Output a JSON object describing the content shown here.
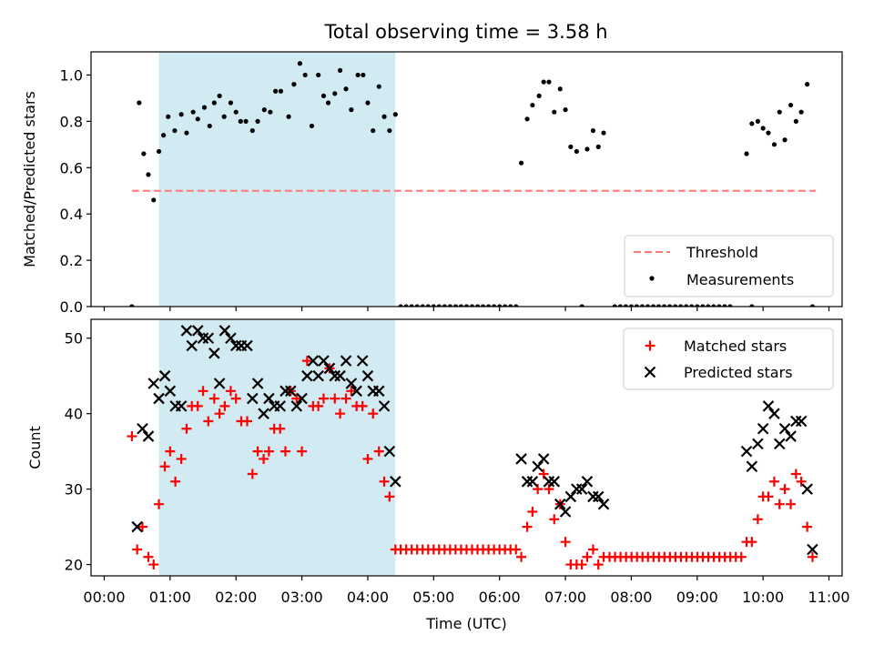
{
  "title": "Total observing time = 3.58 h",
  "colors": {
    "threshold": "#ff7777",
    "highlight": "#add8e6",
    "matched": "#ff0000",
    "predicted": "#000000",
    "measure": "#000000"
  },
  "chart_data": [
    {
      "type": "scatter",
      "ylabel": "Matched/Predicted stars",
      "xlim": [
        -0.2,
        11.2
      ],
      "ylim": [
        0,
        1.1
      ],
      "yticks": [
        0.0,
        0.2,
        0.4,
        0.6,
        0.8,
        1.0
      ],
      "ytick_labels": [
        "0.0",
        "0.2",
        "0.4",
        "0.6",
        "0.8",
        "1.0"
      ],
      "highlight_span_hours": [
        0.83,
        4.42
      ],
      "threshold": {
        "name": "Threshold",
        "value": 0.5,
        "x_range_hours": [
          0.42,
          10.8
        ]
      },
      "legend": {
        "loc": "lower right",
        "entries": [
          "Threshold",
          "Measurements"
        ]
      },
      "series": [
        {
          "name": "Measurements",
          "marker": "dot",
          "x": [
            0.42,
            0.53,
            0.6,
            0.67,
            0.75,
            0.83,
            0.9,
            0.97,
            1.07,
            1.17,
            1.25,
            1.35,
            1.42,
            1.52,
            1.6,
            1.67,
            1.75,
            1.82,
            1.92,
            2.0,
            2.07,
            2.15,
            2.25,
            2.33,
            2.43,
            2.52,
            2.6,
            2.68,
            2.8,
            2.88,
            2.97,
            3.05,
            3.15,
            3.25,
            3.33,
            3.4,
            3.5,
            3.58,
            3.67,
            3.75,
            3.85,
            3.93,
            4.0,
            4.08,
            4.17,
            4.25,
            4.33,
            4.42,
            6.33,
            6.42,
            6.5,
            6.6,
            6.67,
            6.75,
            6.83,
            6.92,
            7.0,
            7.08,
            7.17,
            7.25,
            7.33,
            7.42,
            7.5,
            7.58,
            9.75,
            9.83,
            9.92,
            10.0,
            10.08,
            10.17,
            10.25,
            10.33,
            10.42,
            10.5,
            10.58,
            10.67,
            10.75
          ],
          "y": [
            0.0,
            0.88,
            0.66,
            0.57,
            0.46,
            0.67,
            0.74,
            0.82,
            0.76,
            0.83,
            0.75,
            0.84,
            0.81,
            0.86,
            0.78,
            0.88,
            0.91,
            0.82,
            0.88,
            0.84,
            0.8,
            0.8,
            0.76,
            0.8,
            0.85,
            0.84,
            0.93,
            0.93,
            0.82,
            0.96,
            1.05,
            1.0,
            0.78,
            1.0,
            0.91,
            0.88,
            0.92,
            1.02,
            0.94,
            0.85,
            1.0,
            1.0,
            0.88,
            0.76,
            0.95,
            0.82,
            0.76,
            0.83,
            0.62,
            0.81,
            0.87,
            0.91,
            0.97,
            0.97,
            0.84,
            0.94,
            0.85,
            0.69,
            0.67,
            0.0,
            0.68,
            0.76,
            0.69,
            0.75,
            0.66,
            0.79,
            0.8,
            0.77,
            0.75,
            0.7,
            0.84,
            0.72,
            0.87,
            0.8,
            0.84,
            0.96,
            0.0
          ]
        },
        {
          "name": "",
          "marker": "dot",
          "x_start": 4.5,
          "x_end": 6.25,
          "x_step": 0.0833,
          "x_extra": [
            9.83
          ],
          "y": 0.0,
          "x_range_note": "zeros",
          "x2_start": 7.75,
          "x2_end": 9.58
        }
      ]
    },
    {
      "type": "scatter",
      "ylabel": "Count",
      "xlabel": "Time (UTC)",
      "xlim": [
        -0.2,
        11.2
      ],
      "ylim": [
        18.5,
        52.5
      ],
      "yticks": [
        20,
        30,
        40,
        50
      ],
      "ytick_labels": [
        "20",
        "30",
        "40",
        "50"
      ],
      "xticks": [
        0,
        1,
        2,
        3,
        4,
        5,
        6,
        7,
        8,
        9,
        10,
        11
      ],
      "xtick_labels": [
        "00:00",
        "01:00",
        "02:00",
        "03:00",
        "04:00",
        "05:00",
        "06:00",
        "07:00",
        "08:00",
        "09:00",
        "10:00",
        "11:00"
      ],
      "highlight_span_hours": [
        0.83,
        4.42
      ],
      "legend": {
        "loc": "upper right",
        "entries": [
          "Matched stars",
          "Predicted stars"
        ]
      },
      "series": [
        {
          "name": "Matched stars",
          "marker": "plus",
          "x": [
            0.42,
            0.5,
            0.58,
            0.67,
            0.75,
            0.83,
            0.92,
            1.0,
            1.08,
            1.17,
            1.25,
            1.33,
            1.42,
            1.5,
            1.58,
            1.67,
            1.75,
            1.83,
            1.92,
            2.0,
            2.08,
            2.17,
            2.25,
            2.33,
            2.42,
            2.5,
            2.58,
            2.67,
            2.75,
            2.83,
            2.92,
            3.0,
            3.08,
            3.17,
            3.25,
            3.33,
            3.42,
            3.5,
            3.58,
            3.67,
            3.75,
            3.83,
            3.92,
            4.0,
            4.08,
            4.17,
            4.25,
            4.33,
            4.42,
            6.33,
            6.42,
            6.5,
            6.58,
            6.67,
            6.75,
            6.83,
            6.92,
            7.0,
            7.08,
            7.17,
            7.25,
            7.33,
            7.42,
            7.5,
            7.58,
            9.75,
            9.83,
            9.92,
            10.0,
            10.08,
            10.17,
            10.25,
            10.33,
            10.42,
            10.5,
            10.58,
            10.67,
            10.75
          ],
          "y": [
            37,
            22,
            25,
            21,
            20,
            28,
            33,
            35,
            31,
            34,
            38,
            41,
            41,
            43,
            39,
            42,
            40,
            41,
            43,
            42,
            39,
            39,
            32,
            35,
            34,
            35,
            38,
            38,
            35,
            43,
            42,
            35,
            47,
            41,
            41,
            42,
            46,
            42,
            40,
            42,
            43,
            41,
            41,
            34,
            40,
            35,
            31,
            29,
            22,
            21,
            25,
            27,
            30,
            32,
            30,
            26,
            28,
            23,
            20,
            20,
            20,
            21,
            22,
            20,
            21,
            23,
            23,
            26,
            29,
            29,
            31,
            28,
            30,
            28,
            32,
            31,
            25,
            21
          ],
          "fill_x_start": 4.5,
          "fill_x_end": 6.25,
          "fill_y": 22,
          "fill2_x_start": 7.67,
          "fill2_x_end": 9.67,
          "fill2_y": 21
        },
        {
          "name": "Predicted stars",
          "marker": "x",
          "x": [
            0.5,
            0.58,
            0.67,
            0.75,
            0.83,
            0.92,
            1.0,
            1.08,
            1.17,
            1.25,
            1.33,
            1.42,
            1.5,
            1.58,
            1.67,
            1.75,
            1.83,
            1.92,
            2.0,
            2.08,
            2.17,
            2.25,
            2.33,
            2.42,
            2.5,
            2.58,
            2.67,
            2.75,
            2.83,
            2.92,
            3.0,
            3.08,
            3.17,
            3.25,
            3.33,
            3.42,
            3.5,
            3.58,
            3.67,
            3.75,
            3.83,
            3.92,
            4.0,
            4.08,
            4.17,
            4.25,
            4.33,
            4.42,
            6.33,
            6.42,
            6.5,
            6.58,
            6.67,
            6.75,
            6.83,
            6.92,
            7.0,
            7.08,
            7.17,
            7.25,
            7.33,
            7.42,
            7.5,
            7.58,
            9.75,
            9.83,
            9.92,
            10.0,
            10.08,
            10.17,
            10.25,
            10.33,
            10.42,
            10.5,
            10.58,
            10.67,
            10.75
          ],
          "y": [
            25,
            38,
            37,
            44,
            42,
            45,
            43,
            41,
            41,
            51,
            49,
            51,
            50,
            50,
            48,
            44,
            51,
            50,
            49,
            49,
            49,
            42,
            44,
            40,
            42,
            41,
            41,
            43,
            43,
            41,
            42,
            45,
            47,
            45,
            47,
            46,
            45,
            45,
            47,
            44,
            43,
            47,
            45,
            43,
            43,
            41,
            35,
            31,
            34,
            31,
            31,
            33,
            34,
            31,
            31,
            28,
            27,
            29,
            30,
            30,
            31,
            29,
            29,
            28,
            35,
            33,
            36,
            38,
            41,
            40,
            36,
            38,
            37,
            39,
            39,
            30,
            22
          ]
        }
      ]
    }
  ]
}
